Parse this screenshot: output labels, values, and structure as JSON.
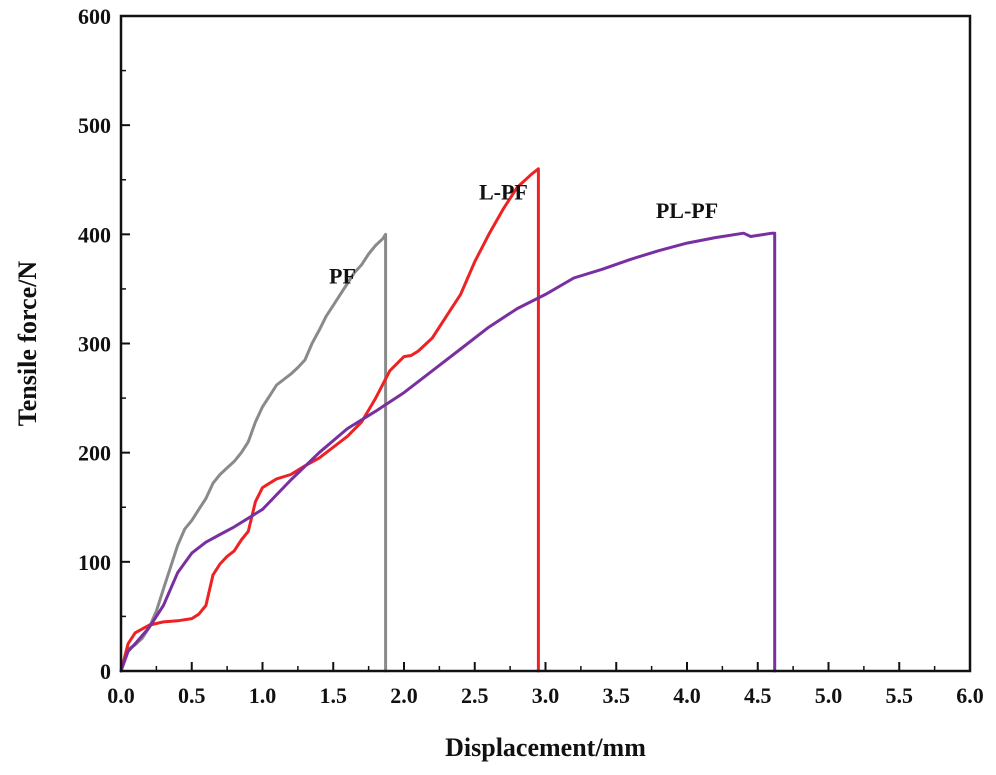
{
  "chart_data": {
    "type": "line",
    "title": "",
    "xlabel": "Displacement/mm",
    "ylabel": "Tensile force/N",
    "xlim": [
      0,
      6.0
    ],
    "ylim": [
      0,
      600
    ],
    "xticks": [
      0.0,
      0.5,
      1.0,
      1.5,
      2.0,
      2.5,
      3.0,
      3.5,
      4.0,
      4.5,
      5.0,
      5.5,
      6.0
    ],
    "xtick_labels": [
      "0.0",
      "0.5",
      "1.0",
      "1.5",
      "2.0",
      "2.5",
      "3.0",
      "3.5",
      "4.0",
      "4.5",
      "5.0",
      "5.5",
      "6.0"
    ],
    "yticks": [
      0,
      100,
      200,
      300,
      400,
      500,
      600
    ],
    "ytick_labels": [
      "0",
      "100",
      "200",
      "300",
      "400",
      "500",
      "600"
    ],
    "grid": false,
    "series": [
      {
        "name": "PF",
        "label": "PF",
        "color": "#8a8a8a",
        "label_at": [
          1.47,
          355
        ],
        "x": [
          0.0,
          0.05,
          0.1,
          0.15,
          0.2,
          0.25,
          0.3,
          0.35,
          0.4,
          0.45,
          0.5,
          0.55,
          0.6,
          0.65,
          0.7,
          0.75,
          0.8,
          0.85,
          0.9,
          0.95,
          1.0,
          1.05,
          1.1,
          1.15,
          1.2,
          1.25,
          1.3,
          1.35,
          1.4,
          1.45,
          1.5,
          1.55,
          1.6,
          1.65,
          1.7,
          1.75,
          1.8,
          1.85,
          1.87,
          1.87
        ],
        "y": [
          0,
          20,
          24,
          30,
          40,
          55,
          75,
          95,
          115,
          130,
          138,
          148,
          158,
          172,
          180,
          186,
          192,
          200,
          210,
          228,
          242,
          252,
          262,
          267,
          272,
          278,
          285,
          300,
          312,
          325,
          335,
          345,
          355,
          365,
          372,
          382,
          390,
          396,
          400,
          0
        ]
      },
      {
        "name": "L-PF",
        "label": "L-PF",
        "color": "#ee2222",
        "label_at": [
          2.53,
          432
        ],
        "x": [
          0.0,
          0.05,
          0.1,
          0.2,
          0.3,
          0.4,
          0.5,
          0.55,
          0.6,
          0.65,
          0.7,
          0.75,
          0.8,
          0.85,
          0.9,
          0.95,
          1.0,
          1.05,
          1.1,
          1.2,
          1.3,
          1.4,
          1.5,
          1.6,
          1.7,
          1.8,
          1.9,
          2.0,
          2.05,
          2.1,
          2.2,
          2.3,
          2.4,
          2.5,
          2.6,
          2.7,
          2.8,
          2.9,
          2.95,
          2.95
        ],
        "y": [
          0,
          25,
          35,
          42,
          45,
          46,
          48,
          52,
          60,
          88,
          98,
          105,
          110,
          120,
          128,
          155,
          168,
          172,
          176,
          180,
          188,
          195,
          205,
          215,
          228,
          250,
          275,
          288,
          289,
          293,
          305,
          325,
          345,
          375,
          400,
          423,
          443,
          455,
          460,
          0
        ]
      },
      {
        "name": "PL-PF",
        "label": "PL-PF",
        "color": "#7a2fa0",
        "label_at": [
          3.78,
          415
        ],
        "x": [
          0.0,
          0.05,
          0.1,
          0.2,
          0.3,
          0.4,
          0.5,
          0.6,
          0.7,
          0.8,
          0.9,
          1.0,
          1.2,
          1.4,
          1.6,
          1.8,
          2.0,
          2.2,
          2.4,
          2.6,
          2.8,
          3.0,
          3.2,
          3.4,
          3.6,
          3.8,
          4.0,
          4.2,
          4.4,
          4.45,
          4.5,
          4.6,
          4.62,
          4.62
        ],
        "y": [
          0,
          18,
          25,
          40,
          60,
          90,
          108,
          118,
          125,
          132,
          140,
          148,
          175,
          200,
          222,
          238,
          255,
          275,
          295,
          315,
          332,
          345,
          360,
          368,
          377,
          385,
          392,
          397,
          401,
          398,
          399,
          401,
          401,
          0
        ]
      }
    ]
  }
}
